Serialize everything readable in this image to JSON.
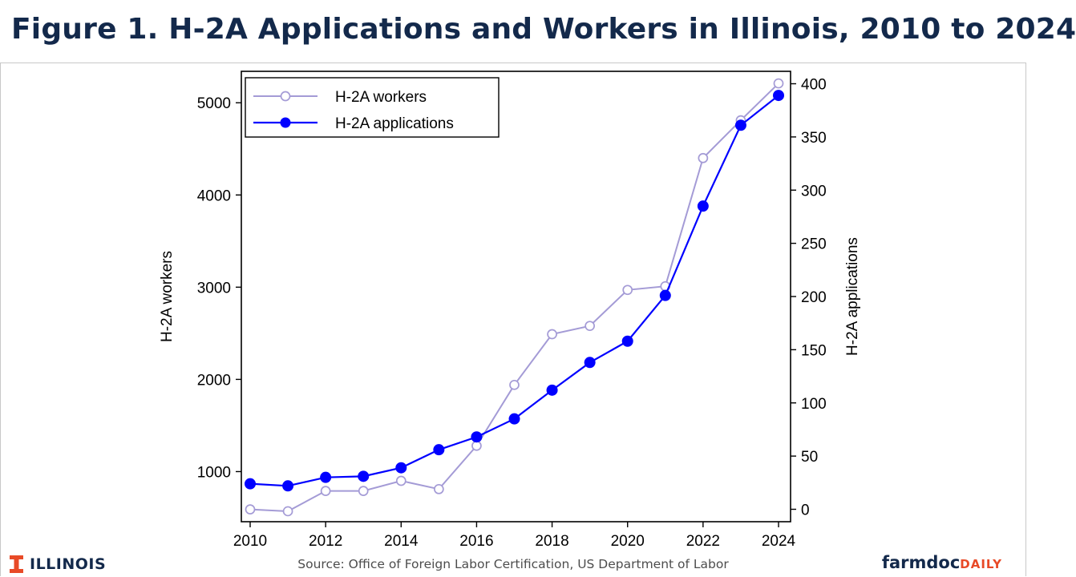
{
  "page": {
    "title": "Figure 1. H-2A Applications and Workers in Illinois, 2010 to 2024",
    "source": "Source: Office of Foreign Labor Certification, US Department of Labor",
    "illinois_logo_text": "ILLINOIS",
    "brand_main": "farmdoc",
    "brand_accent": "DAILY",
    "colors": {
      "title": "#13294b",
      "accent": "#e84a27"
    }
  },
  "chart_data": {
    "type": "line",
    "x": [
      2010,
      2011,
      2012,
      2013,
      2014,
      2015,
      2016,
      2017,
      2018,
      2019,
      2020,
      2021,
      2022,
      2023,
      2024
    ],
    "xlim": [
      2010,
      2024
    ],
    "xticks": [
      2010,
      2012,
      2014,
      2016,
      2018,
      2020,
      2022,
      2024
    ],
    "ylabel_left": "H-2A workers",
    "ylabel_right": "H-2A applications",
    "ylim_left": [
      500,
      5300
    ],
    "yticks_left": [
      1000,
      2000,
      3000,
      4000,
      5000
    ],
    "ylim_right": [
      -2,
      404
    ],
    "yticks_right": [
      0,
      50,
      100,
      150,
      200,
      250,
      300,
      350,
      400
    ],
    "grid": false,
    "legend_position": "top-left",
    "series": [
      {
        "name": "H-2A workers",
        "axis": "left",
        "marker": "hollow-circle",
        "color": "#a49bd6",
        "values": [
          590,
          570,
          790,
          790,
          900,
          810,
          1280,
          1940,
          2490,
          2580,
          2970,
          3010,
          4400,
          4810,
          5210
        ]
      },
      {
        "name": "H-2A applications",
        "axis": "right",
        "marker": "filled-circle",
        "color": "#0000ff",
        "values": [
          24,
          22,
          30,
          31,
          39,
          56,
          68,
          85,
          112,
          138,
          158,
          201,
          285,
          361,
          389
        ]
      }
    ]
  }
}
